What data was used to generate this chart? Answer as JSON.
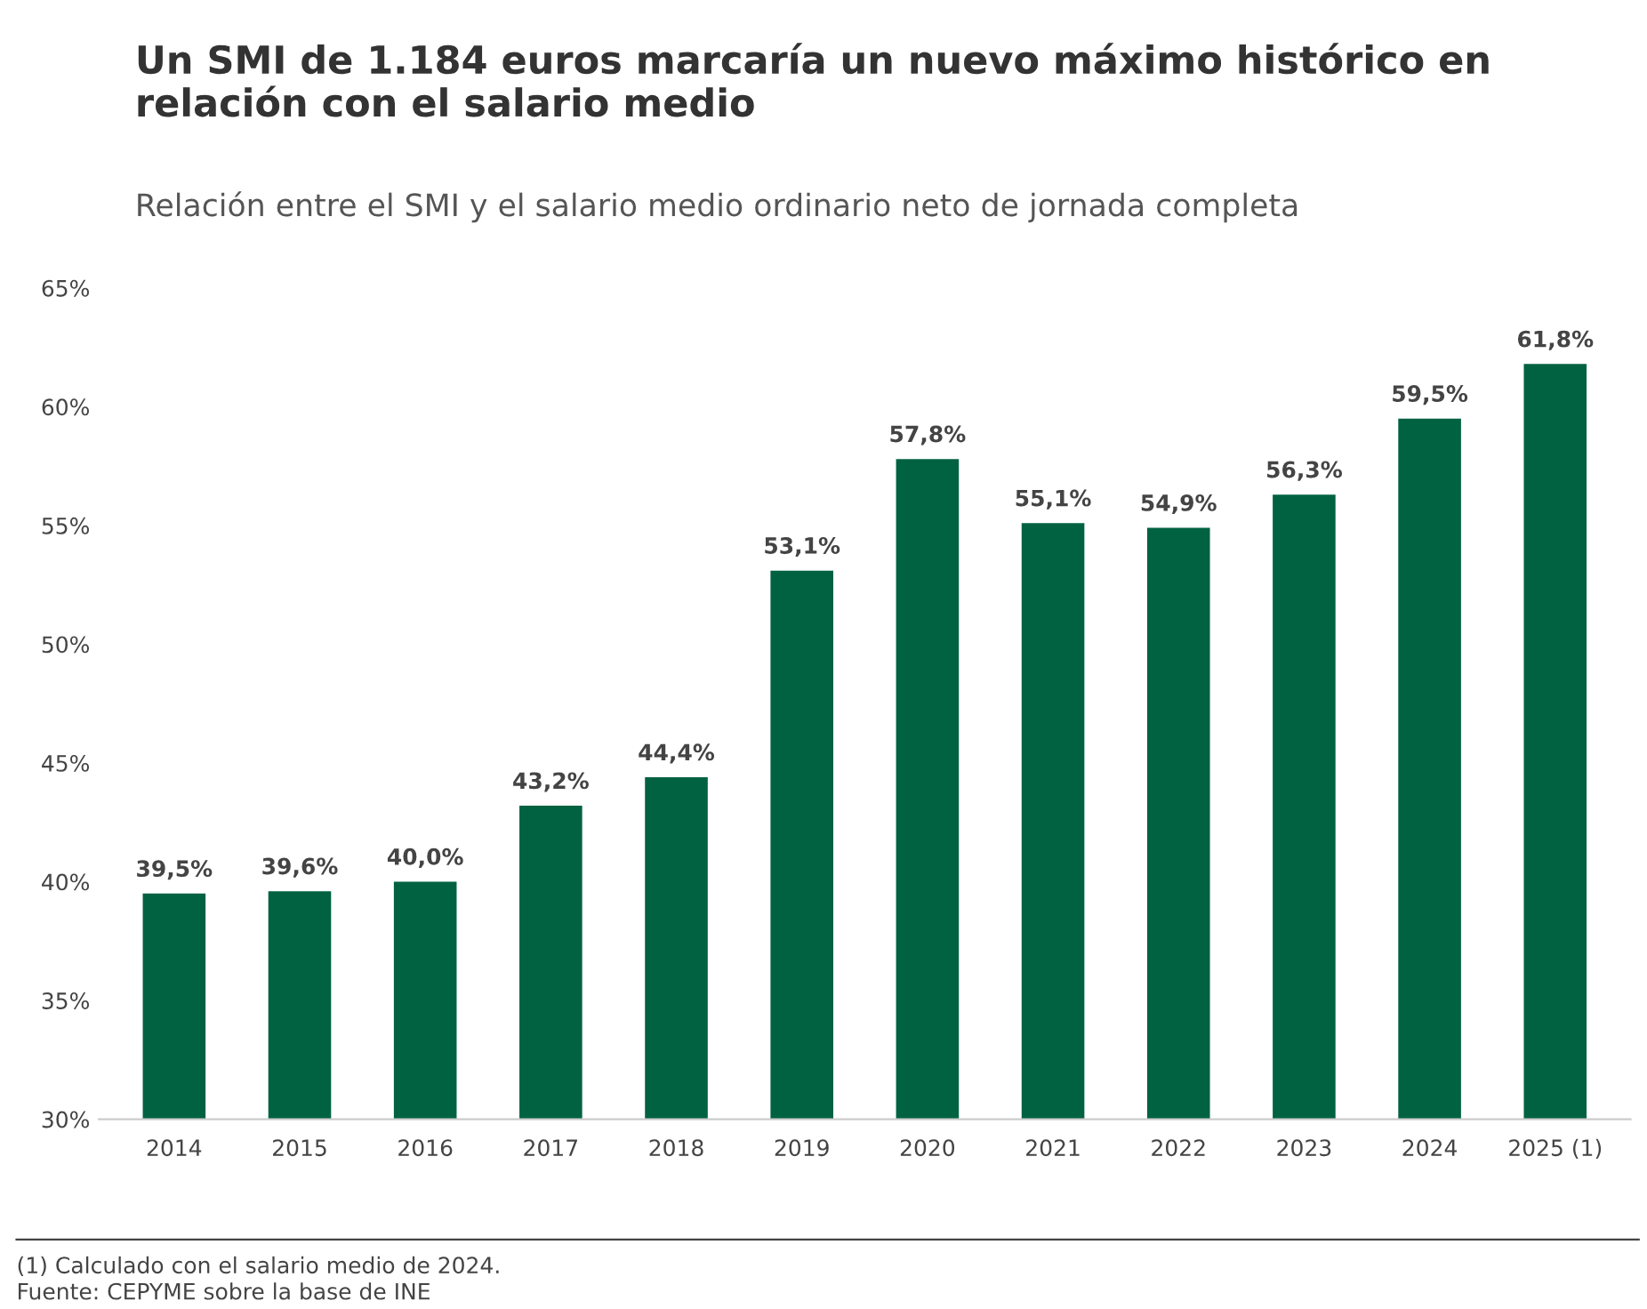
{
  "chart_data": {
    "type": "bar",
    "title": "Un SMI de 1.184 euros marcaría un nuevo máximo histórico en relación con el salario medio",
    "subtitle": "Relación entre el SMI y el salario medio ordinario neto de jornada completa",
    "categories": [
      "2014",
      "2015",
      "2016",
      "2017",
      "2018",
      "2019",
      "2020",
      "2021",
      "2022",
      "2023",
      "2024",
      "2025 (1)"
    ],
    "values": [
      39.5,
      39.6,
      40.0,
      43.2,
      44.4,
      53.1,
      57.8,
      55.1,
      54.9,
      56.3,
      59.5,
      61.8
    ],
    "value_labels": [
      "39,5%",
      "39,6%",
      "40,0%",
      "43,2%",
      "44,4%",
      "53,1%",
      "57,8%",
      "55,1%",
      "54,9%",
      "56,3%",
      "59,5%",
      "61,8%"
    ],
    "color": "#006241",
    "ylim": [
      30,
      65
    ],
    "yticks": [
      {
        "value": 30,
        "label": "30%"
      },
      {
        "value": 35,
        "label": "35%"
      },
      {
        "value": 40,
        "label": "40%"
      },
      {
        "value": 45,
        "label": "45%"
      },
      {
        "value": 50,
        "label": "50%"
      },
      {
        "value": 55,
        "label": "55%"
      },
      {
        "value": 60,
        "label": "60%"
      },
      {
        "value": 65,
        "label": "65%"
      }
    ],
    "grid": false,
    "legend": false,
    "annotations": [
      "(1) Calculado con el salario medio de 2024.",
      "Fuente: CEPYME sobre la base de INE"
    ]
  }
}
